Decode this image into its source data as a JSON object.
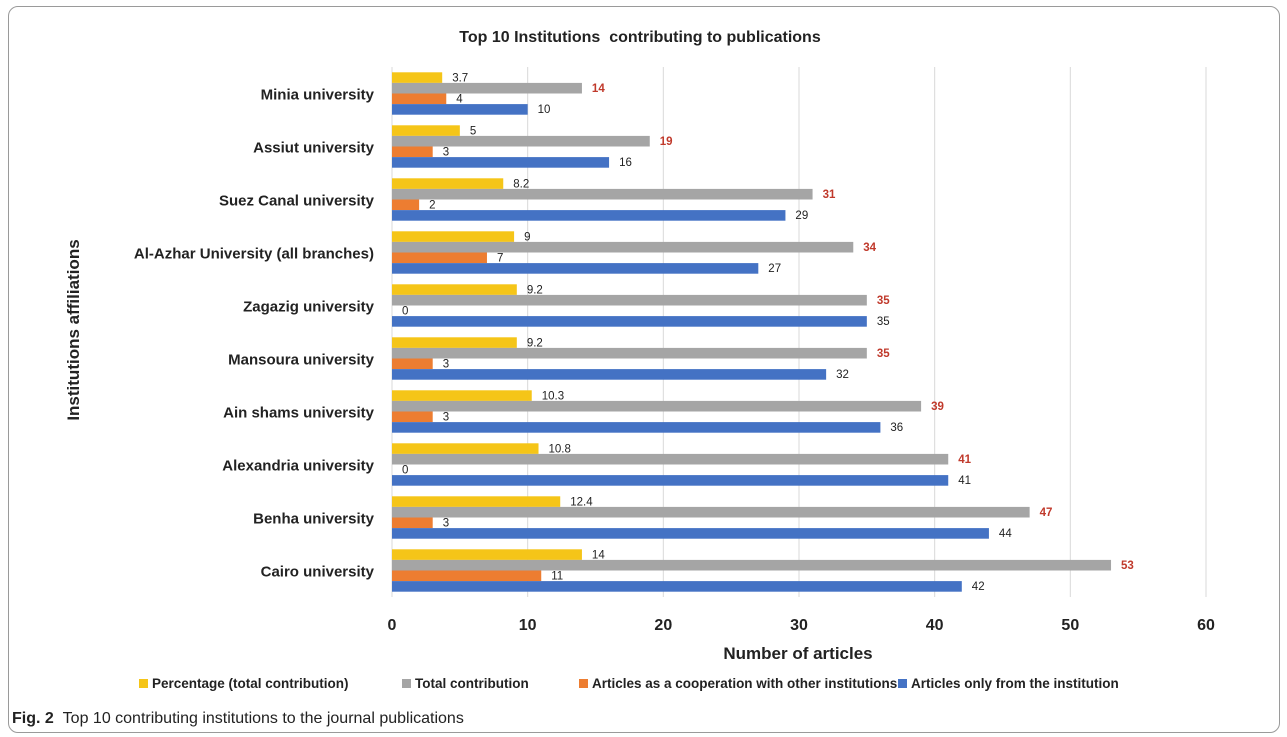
{
  "chart_data": {
    "type": "bar",
    "orientation": "horizontal",
    "title": "Top 10 Institutions  contributing to publications",
    "xlabel": "Number of articles",
    "ylabel": "Institutions affiliations",
    "xlim": [
      0,
      60
    ],
    "xticks": [
      0,
      10,
      20,
      30,
      40,
      50,
      60
    ],
    "grid": "vertical",
    "legend_position": "bottom",
    "categories": [
      "Minia university",
      "Assiut university",
      "Suez Canal university",
      "Al-Azhar University (all branches)",
      "Zagazig university",
      "Mansoura university",
      "Ain shams university",
      "Alexandria university",
      "Benha university",
      "Cairo university"
    ],
    "series": [
      {
        "name": "Percentage (total contribution)",
        "color": "#f5c518",
        "label_color": "#222222",
        "label_bold": false,
        "values": [
          3.7,
          5,
          8.2,
          9,
          9.2,
          9.2,
          10.3,
          10.8,
          12.4,
          14
        ],
        "labels": [
          "3.7",
          "5",
          "8.2",
          "9",
          "9.2",
          "9.2",
          "10.3",
          "10.8",
          "12.4",
          "14"
        ]
      },
      {
        "name": "Total contribution",
        "color": "#a5a5a5",
        "label_color": "#c0392b",
        "label_bold": true,
        "values": [
          14,
          19,
          31,
          34,
          35,
          35,
          39,
          41,
          47,
          53
        ],
        "labels": [
          "14",
          "19",
          "31",
          "34",
          "35",
          "35",
          "39",
          "41",
          "47",
          "53"
        ]
      },
      {
        "name": "Articles as a cooperation with other institutions",
        "color": "#ed7d31",
        "label_color": "#222222",
        "label_bold": false,
        "values": [
          4,
          3,
          2,
          7,
          0,
          3,
          3,
          0,
          3,
          11
        ],
        "labels": [
          "4",
          "3",
          "2",
          "7",
          "0",
          "3",
          "3",
          "0",
          "3",
          "11"
        ]
      },
      {
        "name": "Articles only from the institution",
        "color": "#4472c4",
        "label_color": "#222222",
        "label_bold": false,
        "values": [
          10,
          16,
          29,
          27,
          35,
          32,
          36,
          41,
          44,
          42
        ],
        "labels": [
          "10",
          "16",
          "29",
          "27",
          "35",
          "32",
          "36",
          "41",
          "44",
          "42"
        ]
      }
    ]
  },
  "caption": {
    "label": "Fig. 2",
    "text": "Top 10 contributing institutions to the journal publications"
  }
}
